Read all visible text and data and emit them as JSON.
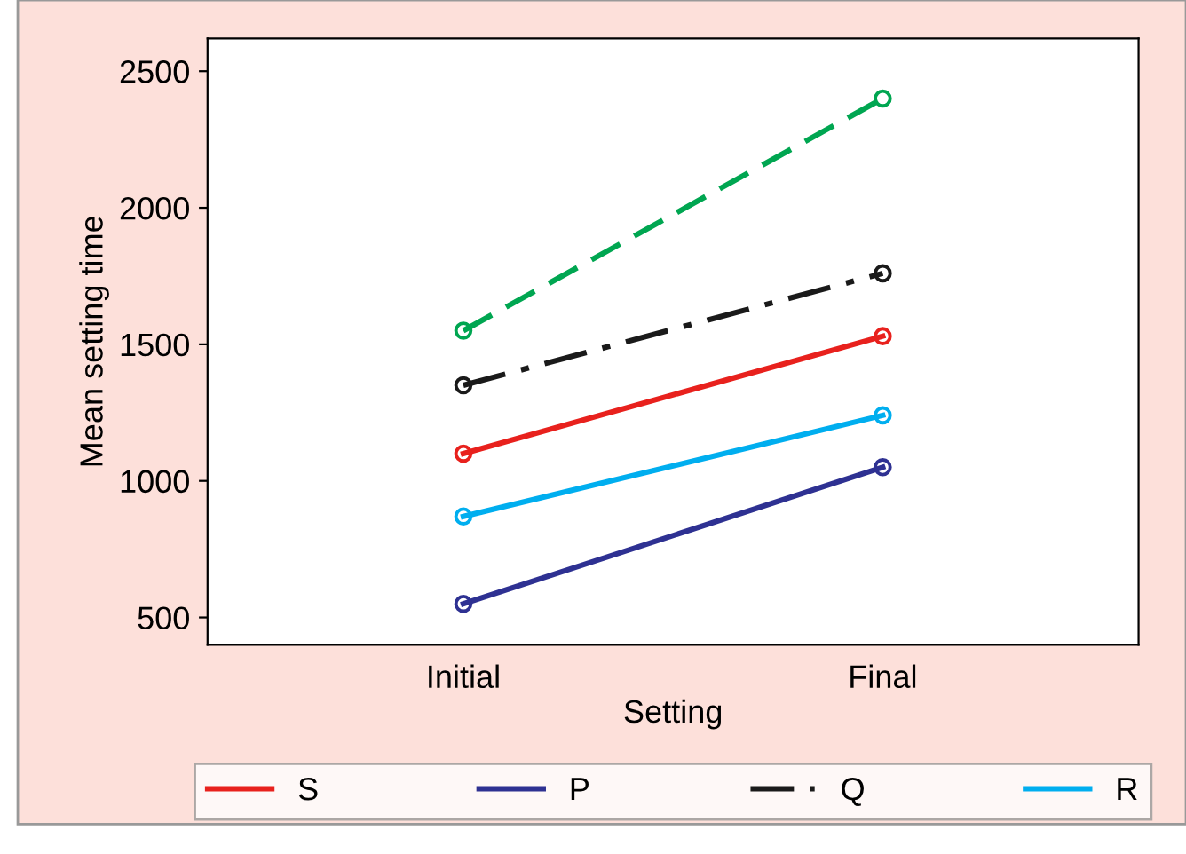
{
  "chart_data": {
    "type": "line",
    "xlabel": "Setting",
    "ylabel": "Mean setting time",
    "categories": [
      "Initial",
      "Final"
    ],
    "series": [
      {
        "name": "S",
        "color": "#e8211d",
        "line_style": "solid",
        "values": [
          1100,
          1530
        ]
      },
      {
        "name": "P",
        "color": "#2e3192",
        "line_style": "solid",
        "values": [
          550,
          1050
        ]
      },
      {
        "name": "Q",
        "color": "#1a1a1a",
        "line_style": "dashdot",
        "values": [
          1350,
          1760
        ]
      },
      {
        "name": "R",
        "color": "#00aeef",
        "line_style": "solid",
        "values": [
          870,
          1240
        ]
      },
      {
        "color": "#00a651",
        "line_style": "dashed",
        "values": [
          1550,
          2400
        ]
      }
    ],
    "ylim": [
      400,
      2620
    ],
    "yticks": [
      500,
      1000,
      1500,
      2000,
      2500
    ],
    "marker": "circle",
    "grid": false,
    "legend": "bottom"
  }
}
